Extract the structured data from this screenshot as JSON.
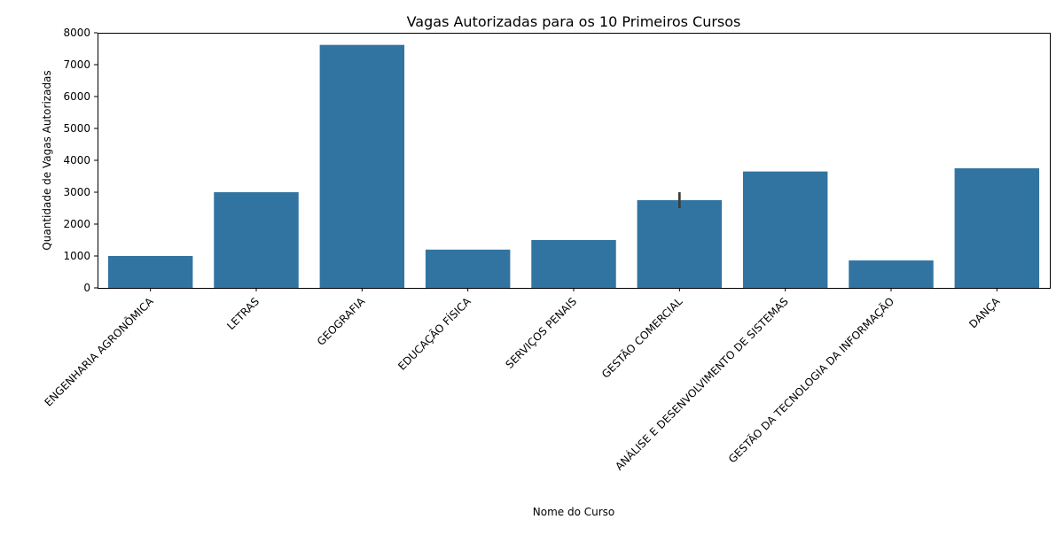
{
  "chart_data": {
    "type": "bar",
    "title": "Vagas Autorizadas para os 10 Primeiros Cursos",
    "xlabel": "Nome do Curso",
    "ylabel": "Quantidade de Vagas Autorizadas",
    "ylim": [
      0,
      8000
    ],
    "yticks": [
      0,
      1000,
      2000,
      3000,
      4000,
      5000,
      6000,
      7000,
      8000
    ],
    "grid": false,
    "bar_color": "#3274a1",
    "error_color": "#3b3b3b",
    "categories": [
      "ENGENHARIA AGRONÔMICA",
      "LETRAS",
      "GEOGRAFIA",
      "EDUCAÇÃO FÍSICA",
      "SERVIÇOS PENAIS",
      "GESTÃO COMERCIAL",
      "ANÁLISE E DESENVOLVIMENTO DE SISTEMAS",
      "GESTÃO DA TECNOLOGIA DA INFORMAÇÃO",
      "DANÇA"
    ],
    "values": [
      1000,
      3000,
      7620,
      1200,
      1500,
      2750,
      3650,
      860,
      3750
    ],
    "error_bars": [
      null,
      null,
      null,
      null,
      null,
      [
        2500,
        3000
      ],
      null,
      null,
      null
    ]
  }
}
